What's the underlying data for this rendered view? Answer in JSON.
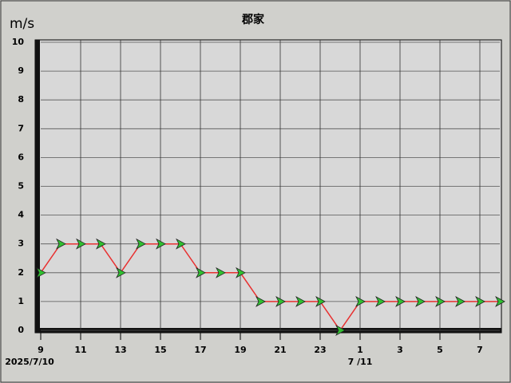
{
  "chart_data": {
    "type": "line",
    "title": "郡家",
    "y_label": "m/s",
    "categories": [
      "9",
      null,
      "11",
      null,
      "13",
      null,
      "15",
      null,
      "17",
      null,
      "19",
      null,
      "21",
      null,
      "23",
      null,
      "1",
      null,
      "3",
      null,
      "5",
      null,
      "7",
      null
    ],
    "date_labels": [
      "2025/7/10",
      "7 /11"
    ],
    "series": [
      {
        "color": "#e83030",
        "values": [
          2,
          3,
          3,
          3,
          2,
          3,
          3,
          3,
          2,
          2,
          2,
          1,
          1,
          1,
          1,
          0,
          1,
          1,
          1,
          1,
          1,
          1,
          1,
          1
        ]
      }
    ],
    "ylim": [
      0,
      10
    ],
    "yticks": [
      0,
      1,
      2,
      3,
      4,
      5,
      6,
      7,
      8,
      9,
      10
    ],
    "grid": true,
    "marker_color": "#30c030"
  }
}
